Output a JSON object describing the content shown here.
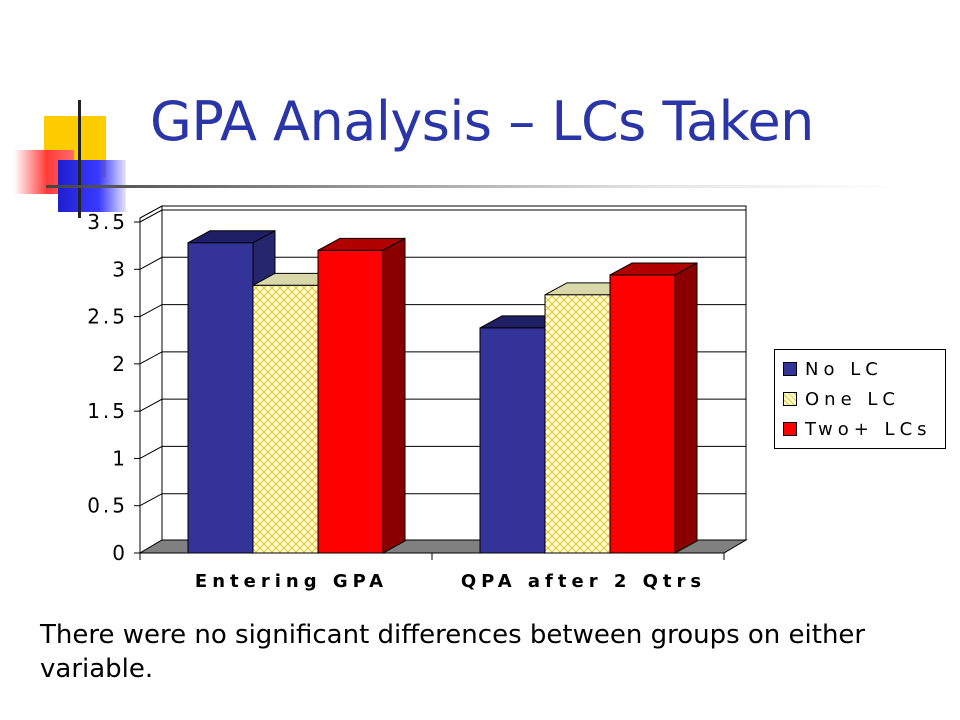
{
  "title": "GPA Analysis – LCs Taken",
  "footnote": "There were no significant differences between groups on either variable.",
  "colors": {
    "title": "#2a36a8",
    "no_lc": "#333399",
    "one_lc": "#ffffcc",
    "two_lc": "#ff0000"
  },
  "chart_data": {
    "type": "bar",
    "style": "3d-clustered",
    "categories": [
      "Entering GPA",
      "QPA after 2 Qtrs"
    ],
    "series": [
      {
        "name": "No LC",
        "values": [
          3.28,
          2.38
        ],
        "color": "#333399",
        "pattern": "solid"
      },
      {
        "name": "One LC",
        "values": [
          2.83,
          2.73
        ],
        "color": "#ffffcc",
        "pattern": "crosshatch"
      },
      {
        "name": "Two+ LCs",
        "values": [
          3.2,
          2.94
        ],
        "color": "#ff0000",
        "pattern": "solid"
      }
    ],
    "y_ticks": [
      "0",
      "0.5",
      "1",
      "1.5",
      "2",
      "2.5",
      "3",
      "3.5"
    ],
    "ylim": [
      0,
      3.5
    ],
    "title": "",
    "xlabel": "",
    "ylabel": "",
    "grid": true,
    "legend_position": "right"
  }
}
